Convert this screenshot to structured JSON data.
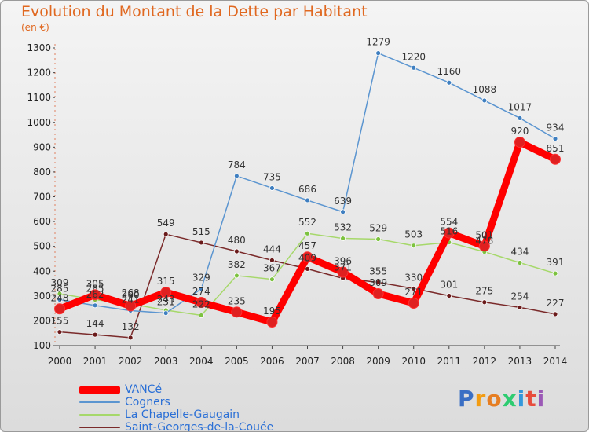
{
  "title": "Evolution du Montant de la Dette par Habitant",
  "subtitle": "(en €)",
  "brand": {
    "letters": [
      "P",
      "r",
      "o",
      "x",
      "i",
      "t",
      "i"
    ],
    "colors": [
      "#3a6fc4",
      "#f39c12",
      "#e67e22",
      "#2ecc71",
      "#3498db",
      "#e74c3c",
      "#9b59b6"
    ]
  },
  "chart_data": {
    "type": "line",
    "title": "Evolution du Montant de la Dette par Habitant",
    "ylabel": "(en €)",
    "xlabel": "",
    "categories": [
      "2000",
      "2001",
      "2002",
      "2003",
      "2004",
      "2005",
      "2006",
      "2007",
      "2008",
      "2009",
      "2010",
      "2011",
      "2012",
      "2013",
      "2014"
    ],
    "yticks": [
      100,
      200,
      300,
      400,
      500,
      600,
      700,
      800,
      900,
      1000,
      1100,
      1200,
      1300
    ],
    "ylim": [
      100,
      1300
    ],
    "series": [
      {
        "name": "VANCé",
        "color": "#ff0000",
        "dot": "#e02020",
        "width": 9,
        "values": [
          248,
          305,
          260,
          315,
          274,
          235,
          195,
          457,
          396,
          309,
          271,
          554,
          501,
          920,
          851
        ],
        "labels": [
          "248",
          "305",
          "260",
          "315",
          "274",
          "235",
          "195",
          "457",
          "396",
          "309",
          "271",
          "554",
          "501",
          "920",
          "851"
        ]
      },
      {
        "name": "Cogners",
        "color": "#5b95d0",
        "dot": "#3f7fc0",
        "width": 1.5,
        "values": [
          285,
          262,
          241,
          231,
          329,
          784,
          735,
          686,
          639,
          1279,
          1220,
          1160,
          1088,
          1017,
          934
        ],
        "labels": [
          "285",
          "262",
          "241",
          "231",
          "329",
          "784",
          "735",
          "686",
          "639",
          "1279",
          "1220",
          "1160",
          "1088",
          "1017",
          "934"
        ]
      },
      {
        "name": "La Chapelle-Gaugain",
        "color": "#a6d86a",
        "dot": "#7cc23f",
        "width": 1.5,
        "values": [
          309,
          285,
          268,
          243,
          222,
          382,
          367,
          552,
          532,
          529,
          503,
          516,
          478,
          434,
          391
        ],
        "labels": [
          "309",
          "285",
          "268",
          "243",
          "222",
          "382",
          "367",
          "552",
          "532",
          "529",
          "503",
          "516",
          "478",
          "434",
          "391"
        ]
      },
      {
        "name": "Saint-Georges-de-la-Couée",
        "color": "#7a2a2a",
        "dot": "#6a1a1a",
        "width": 1.5,
        "values": [
          155,
          144,
          132,
          549,
          515,
          480,
          444,
          409,
          371,
          355,
          330,
          301,
          275,
          254,
          227
        ],
        "labels": [
          "155",
          "144",
          "132",
          "549",
          "515",
          "480",
          "444",
          "409",
          "371",
          "355",
          "330",
          "301",
          "275",
          "254",
          "227"
        ]
      }
    ],
    "legend_position": "bottom-left",
    "grid": false
  }
}
